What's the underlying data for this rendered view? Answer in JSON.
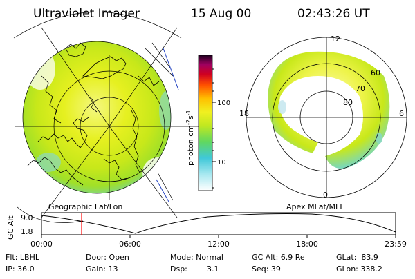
{
  "header": {
    "title": "Ultraviolet Imager",
    "date": "15 Aug 00",
    "time": "02:43:26 UT"
  },
  "colorbar": {
    "unit_base": "photon cm",
    "unit_exp1": "-2",
    "unit_mid": "s",
    "unit_exp2": "-1",
    "ticks": [
      "100",
      "10"
    ]
  },
  "geo_map": {
    "label": "Geographic Lat/Lon"
  },
  "polar_map": {
    "label": "Apex MLat/MLT",
    "mlt_labels": {
      "top": "12",
      "bottom": "0",
      "left": "18",
      "right": "6"
    },
    "lat_labels": [
      "60",
      "70",
      "80"
    ]
  },
  "alt_plot": {
    "ylabel": "GC Alt",
    "yticks": [
      "9.0",
      "1.8"
    ],
    "xticks": [
      "00:00",
      "06:00",
      "12:00",
      "18:00",
      "23:59"
    ],
    "marker_hour": 2.72,
    "colors": {
      "marker": "#ff0000",
      "curve": "#000000"
    }
  },
  "info": {
    "flt": "Flt: LBHL",
    "ip": "IP: 36.0",
    "door": "Door: Open",
    "gain": "Gain: 13",
    "mode": "Mode: Normal",
    "dsp_label": "Dsp:",
    "dsp_value": "3.1",
    "gcalt": "GC Alt: 6.9 Re",
    "seq": "Seq: 39",
    "glat": "GLat:  83.9",
    "glon": "GLon: 338.2"
  }
}
